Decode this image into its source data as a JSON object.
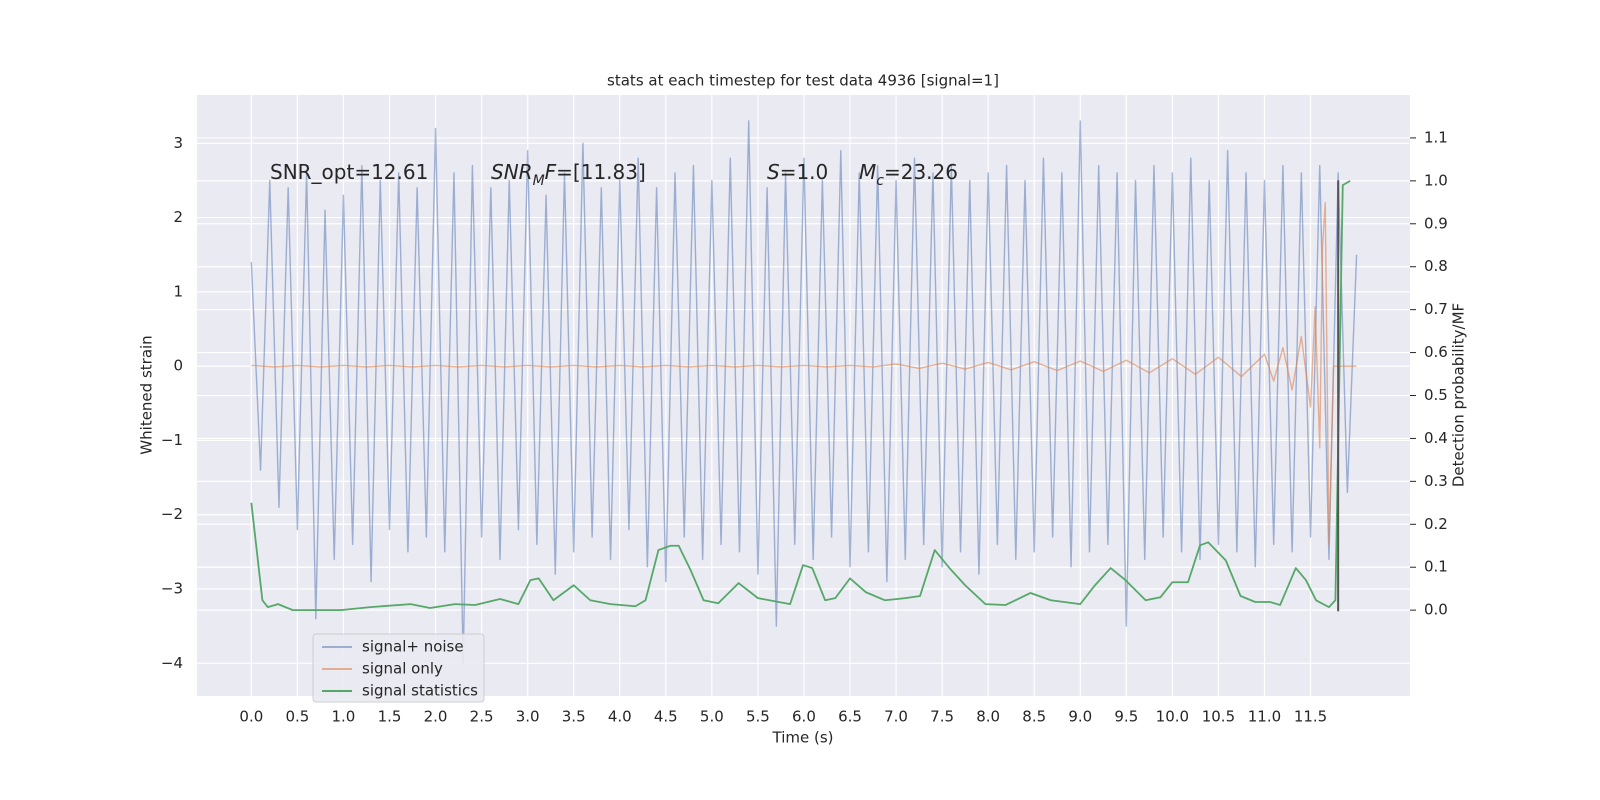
{
  "chart_data": {
    "type": "line",
    "title": "stats at each timestep for test data 4936 [signal=1]",
    "x_label": "Time (s)",
    "y_label": "Whitened strain",
    "y2_label": "Detection probability/MF",
    "xlim": [
      -0.59,
      12.58
    ],
    "ylim": [
      -4.44,
      3.65
    ],
    "y2lim": [
      -0.2,
      1.2
    ],
    "grid": true,
    "legend": "lower left",
    "xticks": [
      {
        "value": 0,
        "label": "0.0"
      },
      {
        "value": 0.5,
        "label": "0.5"
      },
      {
        "value": 1,
        "label": "1.0"
      },
      {
        "value": 1.5,
        "label": "1.5"
      },
      {
        "value": 2,
        "label": "2.0"
      },
      {
        "value": 2.5,
        "label": "2.5"
      },
      {
        "value": 3,
        "label": "3.0"
      },
      {
        "value": 3.5,
        "label": "3.5"
      },
      {
        "value": 4,
        "label": "4.0"
      },
      {
        "value": 4.5,
        "label": "4.5"
      },
      {
        "value": 5,
        "label": "5.0"
      },
      {
        "value": 5.5,
        "label": "5.5"
      },
      {
        "value": 6,
        "label": "6.0"
      },
      {
        "value": 6.5,
        "label": "6.5"
      },
      {
        "value": 7,
        "label": "7.0"
      },
      {
        "value": 7.5,
        "label": "7.5"
      },
      {
        "value": 8,
        "label": "8.0"
      },
      {
        "value": 8.5,
        "label": "8.5"
      },
      {
        "value": 9,
        "label": "9.0"
      },
      {
        "value": 9.5,
        "label": "9.5"
      },
      {
        "value": 10,
        "label": "10.0"
      },
      {
        "value": 10.5,
        "label": "10.5"
      },
      {
        "value": 11,
        "label": "11.0"
      },
      {
        "value": 11.5,
        "label": "11.5"
      }
    ],
    "yticks": [
      {
        "value": -4,
        "label": "−4"
      },
      {
        "value": -3,
        "label": "−3"
      },
      {
        "value": -2,
        "label": "−2"
      },
      {
        "value": -1,
        "label": "−1"
      },
      0,
      1,
      2,
      3
    ],
    "y2ticks": [
      {
        "value": 0,
        "label": "0.0"
      },
      {
        "value": 0.1,
        "label": "0.1"
      },
      {
        "value": 0.2,
        "label": "0.2"
      },
      {
        "value": 0.3,
        "label": "0.3"
      },
      {
        "value": 0.4,
        "label": "0.4"
      },
      {
        "value": 0.5,
        "label": "0.5"
      },
      {
        "value": 0.6,
        "label": "0.6"
      },
      {
        "value": 0.7,
        "label": "0.7"
      },
      {
        "value": 0.8,
        "label": "0.8"
      },
      {
        "value": 0.9,
        "label": "0.9"
      },
      {
        "value": 1,
        "label": "1.0"
      },
      {
        "value": 1.1,
        "label": "1.1"
      }
    ],
    "annotations": [
      {
        "segments": [
          {
            "text": "SNR_opt=12.61",
            "style": "normal"
          }
        ]
      },
      {
        "segments": [
          {
            "text": "SNR",
            "style": "italic"
          },
          {
            "text": "M",
            "style": "sub"
          },
          {
            "text": "F",
            "style": "italic"
          },
          {
            "text": "=[11.83]",
            "style": "normal"
          }
        ]
      },
      {
        "segments": [
          {
            "text": "S",
            "style": "italic"
          },
          {
            "text": "=1.0",
            "style": "normal"
          }
        ]
      },
      {
        "segments": [
          {
            "text": "M",
            "style": "italic"
          },
          {
            "text": "c",
            "style": "sub"
          },
          {
            "text": "=23.26",
            "style": "normal"
          }
        ]
      }
    ],
    "marker_line": {
      "x": 11.8,
      "y": [
        -3.3,
        2.5
      ],
      "color": "#555555"
    },
    "series": [
      {
        "name": "signal+ noise",
        "color": "#4c72b0",
        "opacity": 0.5,
        "axis": "y",
        "x": [
          0,
          0.1,
          0.2,
          0.3,
          0.4,
          0.5,
          0.6,
          0.7,
          0.8,
          0.9,
          1,
          1.1,
          1.2,
          1.3,
          1.4,
          1.5,
          1.6,
          1.7,
          1.8,
          1.9,
          2,
          2.1,
          2.2,
          2.3,
          2.4,
          2.5,
          2.6,
          2.7,
          2.8,
          2.9,
          3,
          3.1,
          3.2,
          3.3,
          3.4,
          3.5,
          3.6,
          3.7,
          3.8,
          3.9,
          4,
          4.1,
          4.2,
          4.3,
          4.4,
          4.5,
          4.6,
          4.7,
          4.8,
          4.9,
          5,
          5.1,
          5.2,
          5.3,
          5.4,
          5.5,
          5.6,
          5.7,
          5.8,
          5.9,
          6,
          6.1,
          6.2,
          6.3,
          6.4,
          6.5,
          6.6,
          6.7,
          6.8,
          6.9,
          7,
          7.1,
          7.2,
          7.3,
          7.4,
          7.5,
          7.6,
          7.7,
          7.8,
          7.9,
          8,
          8.1,
          8.2,
          8.3,
          8.4,
          8.5,
          8.6,
          8.7,
          8.8,
          8.9,
          9,
          9.1,
          9.2,
          9.3,
          9.4,
          9.5,
          9.6,
          9.7,
          9.8,
          9.9,
          10,
          10.1,
          10.2,
          10.3,
          10.4,
          10.5,
          10.6,
          10.7,
          10.8,
          10.9,
          11,
          11.1,
          11.2,
          11.3,
          11.4,
          11.5,
          11.6,
          11.7,
          11.8,
          11.9,
          12
        ],
        "values": [
          1.4,
          -1.4,
          2.5,
          -1.9,
          2.4,
          -2.2,
          2.6,
          -3.4,
          2.1,
          -2.6,
          2.3,
          -2.4,
          2.7,
          -2.9,
          2.5,
          -2.2,
          2.6,
          -2.5,
          2.4,
          -2.3,
          3.2,
          -2.5,
          2.6,
          -4.0,
          2.7,
          -2.3,
          2.4,
          -2.6,
          2.5,
          -2.2,
          2.9,
          -2.4,
          2.3,
          -2.8,
          2.6,
          -2.5,
          3.0,
          -2.3,
          2.4,
          -2.6,
          2.5,
          -2.2,
          2.8,
          -2.7,
          2.4,
          -2.9,
          2.6,
          -2.3,
          2.7,
          -2.6,
          2.5,
          -2.4,
          2.8,
          -2.5,
          3.3,
          -2.8,
          2.4,
          -3.5,
          2.6,
          -2.4,
          2.8,
          -2.6,
          2.5,
          -2.3,
          2.9,
          -2.7,
          2.6,
          -2.5,
          2.7,
          -2.9,
          2.5,
          -2.6,
          2.8,
          -2.4,
          2.6,
          -2.7,
          2.7,
          -2.5,
          2.5,
          -2.8,
          2.6,
          -2.4,
          2.7,
          -2.6,
          2.5,
          -2.5,
          2.8,
          -2.3,
          2.6,
          -2.7,
          3.3,
          -2.5,
          2.7,
          -2.4,
          2.6,
          -3.5,
          2.5,
          -2.6,
          2.7,
          -2.3,
          2.6,
          -2.5,
          2.8,
          -2.6,
          2.5,
          -2.4,
          2.9,
          -2.5,
          2.6,
          -2.7,
          2.5,
          -2.4,
          2.7,
          -2.5,
          2.6,
          -2.3,
          2.7,
          -2.6,
          2.6,
          -1.7,
          1.5
        ]
      },
      {
        "name": "signal only",
        "color": "#dd8452",
        "opacity": 0.6,
        "axis": "y",
        "x": [
          0,
          0.25,
          0.5,
          0.75,
          1,
          1.25,
          1.5,
          1.75,
          2,
          2.25,
          2.5,
          2.75,
          3,
          3.25,
          3.5,
          3.75,
          4,
          4.25,
          4.5,
          4.75,
          5,
          5.25,
          5.5,
          5.75,
          6,
          6.25,
          6.5,
          6.75,
          7,
          7.25,
          7.5,
          7.75,
          8,
          8.25,
          8.5,
          8.75,
          9,
          9.25,
          9.5,
          9.75,
          10,
          10.25,
          10.5,
          10.75,
          11,
          11.1,
          11.2,
          11.3,
          11.4,
          11.5,
          11.55,
          11.6,
          11.63,
          11.66,
          11.7,
          11.75,
          12
        ],
        "values": [
          0.01,
          -0.01,
          0.01,
          -0.01,
          0.01,
          -0.01,
          0.01,
          -0.01,
          0.01,
          -0.01,
          0.01,
          -0.01,
          0.01,
          -0.01,
          0.01,
          -0.01,
          0.01,
          -0.01,
          0.01,
          -0.01,
          0.01,
          -0.01,
          0.01,
          -0.01,
          0.01,
          -0.01,
          0.01,
          -0.01,
          0.03,
          -0.03,
          0.04,
          -0.04,
          0.05,
          -0.05,
          0.06,
          -0.06,
          0.07,
          -0.07,
          0.08,
          -0.09,
          0.1,
          -0.11,
          0.12,
          -0.14,
          0.16,
          -0.2,
          0.25,
          -0.32,
          0.4,
          -0.55,
          0.8,
          -1.1,
          1.6,
          2.2,
          -2.4,
          0,
          0
        ]
      },
      {
        "name": "signal statistics",
        "color": "#55a868",
        "opacity": 1,
        "axis": "y2",
        "x": [
          0,
          0.12,
          0.18,
          0.29,
          0.45,
          0.97,
          1.29,
          1.73,
          1.94,
          2.21,
          2.43,
          2.7,
          2.9,
          3.03,
          3.12,
          3.28,
          3.5,
          3.68,
          3.9,
          4.17,
          4.28,
          4.42,
          4.55,
          4.64,
          4.77,
          4.91,
          5.07,
          5.29,
          5.5,
          5.85,
          5.99,
          6.09,
          6.23,
          6.34,
          6.5,
          6.67,
          6.88,
          7.1,
          7.26,
          7.42,
          7.58,
          7.75,
          7.97,
          8.19,
          8.46,
          8.68,
          9,
          9.16,
          9.33,
          9.49,
          9.71,
          9.87,
          10,
          10.17,
          10.3,
          10.39,
          10.58,
          10.74,
          10.9,
          11.06,
          11.17,
          11.34,
          11.45,
          11.56,
          11.7,
          11.77,
          11.85,
          11.93
        ],
        "values": [
          0.25,
          0.023,
          0.007,
          0.014,
          0,
          0,
          0.007,
          0.014,
          0.005,
          0.014,
          0.012,
          0.026,
          0.014,
          0.07,
          0.074,
          0.023,
          0.058,
          0.023,
          0.014,
          0.009,
          0.023,
          0.14,
          0.15,
          0.15,
          0.093,
          0.023,
          0.016,
          0.063,
          0.028,
          0.014,
          0.105,
          0.098,
          0.023,
          0.028,
          0.074,
          0.042,
          0.023,
          0.028,
          0.033,
          0.14,
          0.098,
          0.058,
          0.014,
          0.012,
          0.04,
          0.023,
          0.014,
          0.058,
          0.098,
          0.07,
          0.023,
          0.03,
          0.065,
          0.065,
          0.151,
          0.158,
          0.116,
          0.033,
          0.019,
          0.019,
          0.012,
          0.098,
          0.07,
          0.023,
          0.007,
          0.023,
          0.99,
          1.0
        ]
      }
    ]
  }
}
